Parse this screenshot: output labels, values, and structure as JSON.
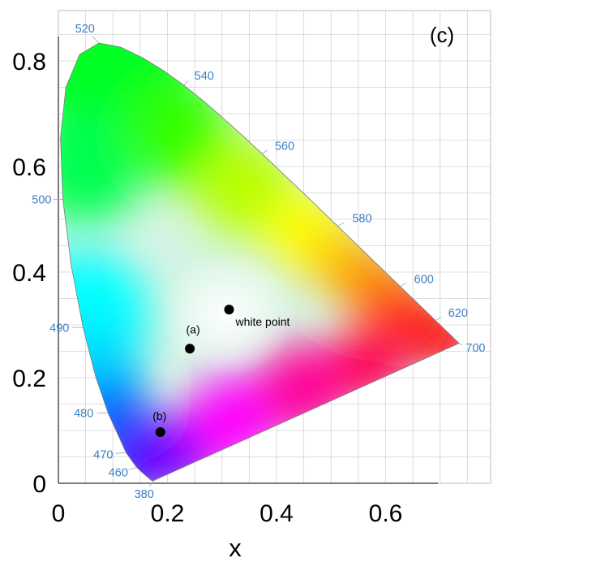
{
  "chart_data": {
    "type": "scatter",
    "title": "",
    "panel_label": "(c)",
    "xlabel": "x",
    "ylabel": "",
    "xlim": [
      0,
      0.8
    ],
    "ylim": [
      0,
      0.85
    ],
    "x_ticks": [
      {
        "value": 0,
        "label": "0"
      },
      {
        "value": 0.2,
        "label": "0.2"
      },
      {
        "value": 0.4,
        "label": "0.4"
      },
      {
        "value": 0.6,
        "label": "0.6"
      }
    ],
    "y_ticks": [
      {
        "value": 0,
        "label": "0"
      },
      {
        "value": 0.2,
        "label": "0.2"
      },
      {
        "value": 0.4,
        "label": "0.4"
      },
      {
        "value": 0.6,
        "label": "0.6"
      },
      {
        "value": 0.8,
        "label": "0.8"
      }
    ],
    "grid": true,
    "background": "CIE 1931 chromaticity diagram",
    "spectral_locus_labels": [
      {
        "label": "380",
        "x": 0.175,
        "y": 0.005
      },
      {
        "label": "460",
        "x": 0.144,
        "y": 0.03
      },
      {
        "label": "470",
        "x": 0.124,
        "y": 0.058
      },
      {
        "label": "480",
        "x": 0.091,
        "y": 0.133
      },
      {
        "label": "490",
        "x": 0.045,
        "y": 0.295
      },
      {
        "label": "500",
        "x": 0.008,
        "y": 0.538
      },
      {
        "label": "520",
        "x": 0.074,
        "y": 0.834
      },
      {
        "label": "540",
        "x": 0.23,
        "y": 0.754
      },
      {
        "label": "560",
        "x": 0.373,
        "y": 0.624
      },
      {
        "label": "580",
        "x": 0.512,
        "y": 0.487
      },
      {
        "label": "600",
        "x": 0.627,
        "y": 0.373
      },
      {
        "label": "620",
        "x": 0.691,
        "y": 0.308
      },
      {
        "label": "700",
        "x": 0.735,
        "y": 0.265
      }
    ],
    "series": [
      {
        "points": [
          {
            "label": "white point",
            "x": 0.313,
            "y": 0.329
          },
          {
            "label": "(a)",
            "x": 0.241,
            "y": 0.255
          },
          {
            "label": "(b)",
            "x": 0.187,
            "y": 0.097
          }
        ]
      }
    ],
    "colors": {
      "wavelength_label": "#3a7fc4",
      "marker": "#000000",
      "grid": "#d4d4d4",
      "axis": "#555555"
    }
  }
}
